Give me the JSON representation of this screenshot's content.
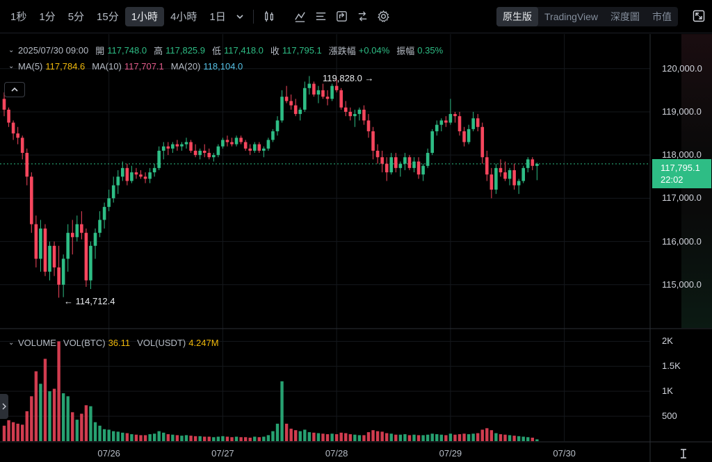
{
  "toolbar": {
    "timeframes": [
      "1秒",
      "1分",
      "5分",
      "15分",
      "1小時",
      "4小時",
      "1日"
    ],
    "active_timeframe": "1小時",
    "views": [
      "原生版",
      "TradingView",
      "深度圖",
      "市值"
    ],
    "active_view": "原生版",
    "tool_icons": [
      "candle-settings-icon",
      "indicator-icon",
      "list-icon",
      "drawing-icon",
      "share-icon",
      "gear-icon"
    ]
  },
  "ohlc": {
    "date": "2025/07/30 09:00",
    "open_label": "開",
    "open": "117,748.0",
    "high_label": "高",
    "high": "117,825.9",
    "low_label": "低",
    "low": "117,418.0",
    "close_label": "收",
    "close": "117,795.1",
    "change_label": "漲跌幅",
    "change": "+0.04%",
    "amplitude_label": "振幅",
    "amplitude": "0.35%"
  },
  "ma": {
    "ma5_label": "MA(5)",
    "ma5": "117,784.6",
    "ma10_label": "MA(10)",
    "ma10": "117,707.1",
    "ma20_label": "MA(20)",
    "ma20": "118,104.0"
  },
  "volume": {
    "title": "VOLUME",
    "btc_label": "VOL(BTC)",
    "btc": "36.11",
    "usdt_label": "VOL(USDT)",
    "usdt": "4.247M"
  },
  "price_tag": {
    "price": "117,795.1",
    "countdown": "22:02"
  },
  "extremes": {
    "high": "119,828.0",
    "low": "114,712.4"
  },
  "colors": {
    "up": "#2ebd85",
    "down": "#f6465d",
    "ma5": "#f0b90b",
    "ma10": "#e15b8a",
    "ma20": "#56c2e6",
    "bg": "#000000"
  },
  "chart_data": {
    "type": "candlestick",
    "price_axis": {
      "ticks": [
        120000,
        119000,
        118000,
        117000,
        116000,
        115000
      ],
      "tick_labels": [
        "120,000.0",
        "119,000.0",
        "118,000.0",
        "117,000.0",
        "116,000.0",
        "115,000.0"
      ],
      "range": [
        114000,
        120800
      ]
    },
    "volume_axis": {
      "ticks": [
        2000,
        1500,
        1000,
        500
      ],
      "tick_labels": [
        "2K",
        "1.5K",
        "1K",
        "500"
      ],
      "range": [
        0,
        2200
      ]
    },
    "time_labels": [
      "07/26",
      "07/27",
      "07/28",
      "07/29",
      "07/30"
    ],
    "last_price": 117795.1,
    "candles": [
      [
        119300,
        119450,
        118900,
        119050,
        310
      ],
      [
        119050,
        119100,
        118650,
        118750,
        420
      ],
      [
        118750,
        118800,
        118350,
        118500,
        380
      ],
      [
        118500,
        118650,
        118250,
        118400,
        350
      ],
      [
        118400,
        118450,
        117900,
        118050,
        330
      ],
      [
        118050,
        118150,
        117300,
        117500,
        600
      ],
      [
        117500,
        117600,
        116200,
        116400,
        900
      ],
      [
        116400,
        116600,
        115400,
        115600,
        1400
      ],
      [
        115600,
        116500,
        115300,
        116300,
        1150
      ],
      [
        116300,
        116400,
        115200,
        115300,
        1650
      ],
      [
        115300,
        116000,
        115100,
        115900,
        1000
      ],
      [
        115900,
        116000,
        115200,
        115400,
        1050
      ],
      [
        115400,
        115900,
        114700,
        115000,
        2000
      ],
      [
        115000,
        115700,
        114712,
        115600,
        960
      ],
      [
        115600,
        116400,
        115300,
        116200,
        900
      ],
      [
        116200,
        116500,
        115700,
        116100,
        580
      ],
      [
        116100,
        116600,
        116000,
        116400,
        430
      ],
      [
        116400,
        116700,
        116050,
        116200,
        550
      ],
      [
        116200,
        116300,
        114950,
        115100,
        720
      ],
      [
        115100,
        116000,
        114900,
        115900,
        700
      ],
      [
        115900,
        116300,
        115600,
        116200,
        380
      ],
      [
        116200,
        116700,
        116100,
        116500,
        310
      ],
      [
        116500,
        116900,
        116300,
        116800,
        240
      ],
      [
        116800,
        117200,
        116700,
        117000,
        230
      ],
      [
        117000,
        117500,
        116900,
        117300,
        200
      ],
      [
        117300,
        117650,
        117100,
        117500,
        190
      ],
      [
        117500,
        117850,
        117400,
        117700,
        170
      ],
      [
        117700,
        117800,
        117300,
        117400,
        160
      ],
      [
        117400,
        117750,
        117350,
        117600,
        140
      ],
      [
        117600,
        117700,
        117450,
        117550,
        130
      ],
      [
        117550,
        117650,
        117450,
        117500,
        120
      ],
      [
        117500,
        117600,
        117350,
        117450,
        120
      ],
      [
        117450,
        117700,
        117350,
        117600,
        140
      ],
      [
        117600,
        117800,
        117500,
        117700,
        150
      ],
      [
        117700,
        118200,
        117650,
        118100,
        200
      ],
      [
        118100,
        118300,
        117900,
        118200,
        170
      ],
      [
        118200,
        118300,
        118000,
        118150,
        140
      ],
      [
        118150,
        118300,
        118050,
        118250,
        130
      ],
      [
        118250,
        118350,
        118100,
        118200,
        120
      ],
      [
        118200,
        118300,
        118100,
        118250,
        110
      ],
      [
        118250,
        118400,
        118150,
        118300,
        120
      ],
      [
        118300,
        118350,
        118050,
        118100,
        110
      ],
      [
        118100,
        118250,
        117950,
        118000,
        100
      ],
      [
        118000,
        118150,
        117900,
        118100,
        100
      ],
      [
        118100,
        118250,
        117950,
        118050,
        90
      ],
      [
        118050,
        118150,
        117900,
        117950,
        90
      ],
      [
        117950,
        118050,
        117850,
        118000,
        80
      ],
      [
        118000,
        118250,
        117950,
        118200,
        90
      ],
      [
        118200,
        118400,
        118150,
        118350,
        100
      ],
      [
        118350,
        118450,
        118200,
        118300,
        90
      ],
      [
        118300,
        118400,
        118200,
        118250,
        80
      ],
      [
        118250,
        118450,
        118200,
        118400,
        90
      ],
      [
        118400,
        118450,
        118250,
        118300,
        80
      ],
      [
        118300,
        118350,
        118100,
        118150,
        80
      ],
      [
        118150,
        118250,
        118000,
        118100,
        70
      ],
      [
        118100,
        118300,
        118050,
        118250,
        90
      ],
      [
        118250,
        118300,
        118050,
        118100,
        80
      ],
      [
        118100,
        118200,
        117950,
        118150,
        90
      ],
      [
        118150,
        118400,
        118100,
        118350,
        120
      ],
      [
        118350,
        118600,
        118300,
        118550,
        200
      ],
      [
        118550,
        118900,
        118450,
        118800,
        350
      ],
      [
        118800,
        119500,
        118750,
        119350,
        1200
      ],
      [
        119350,
        119600,
        119200,
        119250,
        350
      ],
      [
        119250,
        119400,
        119050,
        119150,
        250
      ],
      [
        119150,
        119300,
        118900,
        118950,
        220
      ],
      [
        118950,
        119100,
        118800,
        119050,
        200
      ],
      [
        119050,
        119700,
        119000,
        119550,
        230
      ],
      [
        119550,
        119828,
        119400,
        119650,
        180
      ],
      [
        119650,
        119700,
        119350,
        119400,
        170
      ],
      [
        119400,
        119600,
        119200,
        119500,
        160
      ],
      [
        119500,
        119650,
        119300,
        119350,
        150
      ],
      [
        119350,
        119500,
        119150,
        119300,
        140
      ],
      [
        119300,
        119650,
        119250,
        119600,
        150
      ],
      [
        119600,
        119750,
        119450,
        119500,
        140
      ],
      [
        119500,
        119550,
        119050,
        119100,
        170
      ],
      [
        119100,
        119250,
        118900,
        119000,
        160
      ],
      [
        119000,
        119100,
        118800,
        118900,
        140
      ],
      [
        118900,
        119050,
        118650,
        118950,
        130
      ],
      [
        118950,
        119100,
        118800,
        119050,
        120
      ],
      [
        119050,
        119150,
        118700,
        118800,
        120
      ],
      [
        118800,
        118950,
        118400,
        118550,
        180
      ],
      [
        118550,
        118650,
        117900,
        118100,
        220
      ],
      [
        118100,
        118250,
        117800,
        117950,
        200
      ],
      [
        117950,
        118100,
        117600,
        117800,
        190
      ],
      [
        117800,
        117950,
        117400,
        117600,
        160
      ],
      [
        117600,
        118050,
        117550,
        117950,
        150
      ],
      [
        117950,
        118050,
        117600,
        117700,
        130
      ],
      [
        117700,
        117850,
        117500,
        117800,
        130
      ],
      [
        117800,
        118050,
        117650,
        117950,
        140
      ],
      [
        117950,
        118000,
        117650,
        117700,
        120
      ],
      [
        117700,
        117950,
        117600,
        117850,
        130
      ],
      [
        117850,
        117950,
        117450,
        117550,
        120
      ],
      [
        117550,
        117800,
        117400,
        117750,
        120
      ],
      [
        117750,
        118150,
        117700,
        118050,
        130
      ],
      [
        118050,
        118600,
        118000,
        118550,
        150
      ],
      [
        118550,
        118800,
        118450,
        118700,
        140
      ],
      [
        118700,
        118850,
        118550,
        118800,
        130
      ],
      [
        118800,
        118900,
        118650,
        118750,
        120
      ],
      [
        118750,
        119300,
        118700,
        118950,
        150
      ],
      [
        118950,
        119000,
        118750,
        118900,
        130
      ],
      [
        118900,
        119000,
        118450,
        118550,
        140
      ],
      [
        118550,
        118650,
        118200,
        118300,
        150
      ],
      [
        118300,
        118700,
        118250,
        118600,
        140
      ],
      [
        118600,
        119000,
        118550,
        118850,
        150
      ],
      [
        118850,
        118950,
        118550,
        118650,
        160
      ],
      [
        118650,
        118750,
        117800,
        117950,
        230
      ],
      [
        117950,
        118100,
        117400,
        117550,
        260
      ],
      [
        117550,
        117700,
        117000,
        117200,
        220
      ],
      [
        117200,
        117800,
        117100,
        117700,
        160
      ],
      [
        117700,
        117900,
        117500,
        117600,
        140
      ],
      [
        117600,
        117850,
        117400,
        117450,
        130
      ],
      [
        117450,
        117700,
        117300,
        117650,
        120
      ],
      [
        117650,
        117800,
        117200,
        117300,
        110
      ],
      [
        117300,
        117450,
        117100,
        117400,
        100
      ],
      [
        117400,
        117750,
        117350,
        117700,
        90
      ],
      [
        117700,
        117950,
        117600,
        117900,
        80
      ],
      [
        117900,
        117950,
        117650,
        117750,
        70
      ],
      [
        117748,
        117826,
        117418,
        117795,
        36
      ]
    ]
  }
}
